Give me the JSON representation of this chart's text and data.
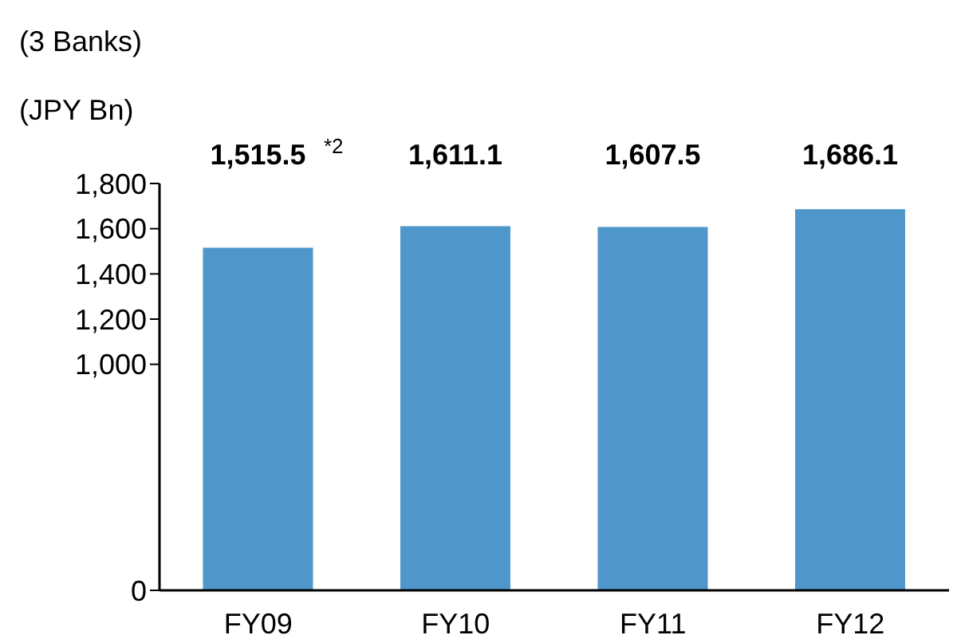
{
  "chart_data": {
    "type": "bar",
    "title": "(3 Banks)",
    "ylabel": "(JPY Bn)",
    "categories": [
      "FY09",
      "FY10",
      "FY11",
      "FY12"
    ],
    "values": [
      1515.5,
      1611.1,
      1607.5,
      1686.1
    ],
    "value_labels": [
      "1,515.5",
      "1,611.1",
      "1,607.5",
      "1,686.1"
    ],
    "color": "#4f96ca",
    "ylim": [
      0,
      1800
    ],
    "yticks": [
      {
        "value": 0,
        "label": "0"
      },
      {
        "value": 1000,
        "label": "1,000"
      },
      {
        "value": 1200,
        "label": "1,200"
      },
      {
        "value": 1400,
        "label": "1,400"
      },
      {
        "value": 1600,
        "label": "1,600"
      },
      {
        "value": 1800,
        "label": "1,800"
      }
    ],
    "annotations": [
      "*2"
    ],
    "grid": false,
    "legend": false
  }
}
